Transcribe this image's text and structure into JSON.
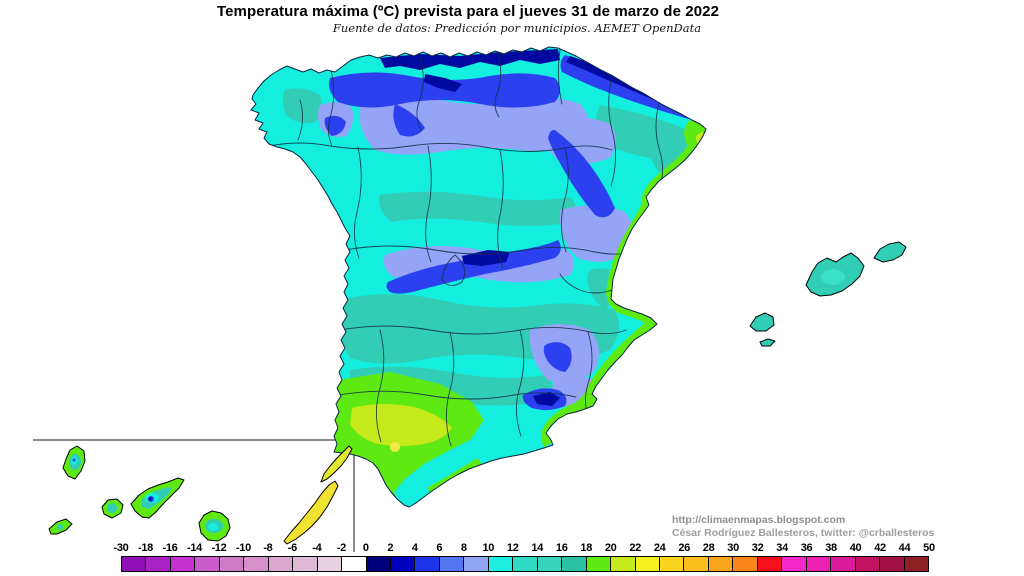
{
  "title": "Temperatura máxima (ºC) prevista para el jueves 31 de marzo de 2022",
  "subtitle": "Fuente de datos: Predicción por municipios. AEMET OpenData",
  "attribution": {
    "line1": "http://climaenmapas.blogspot.com",
    "line2": "César Rodríguez Ballesteros, twitter: @crballesteros"
  },
  "scale": {
    "tick_labels": [
      "-30",
      "-18",
      "-16",
      "-14",
      "-12",
      "-10",
      "-8",
      "-6",
      "-4",
      "-2",
      "0",
      "2",
      "4",
      "6",
      "8",
      "10",
      "12",
      "14",
      "16",
      "18",
      "20",
      "22",
      "24",
      "26",
      "28",
      "30",
      "32",
      "34",
      "36",
      "38",
      "40",
      "42",
      "44",
      "50"
    ],
    "cell_colors": [
      "#8E10B5",
      "#A922C4",
      "#C433D2",
      "#CA5BCB",
      "#CF7CC7",
      "#D590CB",
      "#DBA6D0",
      "#DFBAD6",
      "#E5D2DE",
      "#FFFFFF",
      "#00007D",
      "#0000C3",
      "#1F35EA",
      "#5276F2",
      "#93A5F6",
      "#1FEFE0",
      "#2FD9C4",
      "#38D5BA",
      "#2CC2A5",
      "#5FE912",
      "#C6E91C",
      "#F7F021",
      "#FBD51D",
      "#FBBE1B",
      "#FAA51A",
      "#F8861A",
      "#F6121C",
      "#F628C9",
      "#EC21B2",
      "#DC1B9B",
      "#C1135F",
      "#A31145",
      "#8F2026"
    ]
  },
  "map": {
    "palette": {
      "cyan": "#14EEDE",
      "teal": "#31CDB4",
      "periwinkle": "#95A4F6",
      "royal": "#2C40EF",
      "navy": "#0009A0",
      "green": "#5FE912",
      "yellowgreen": "#C6E91C",
      "yellow": "#F2EA43",
      "canary_yellow": "#EFE230",
      "lanzarote_yellowgreen": "#E3E930",
      "mallorca_center": "#3ADFC8",
      "coast_line": "#0A2540",
      "province_line": "#123247",
      "inset_border": "#8A8A8A"
    }
  }
}
